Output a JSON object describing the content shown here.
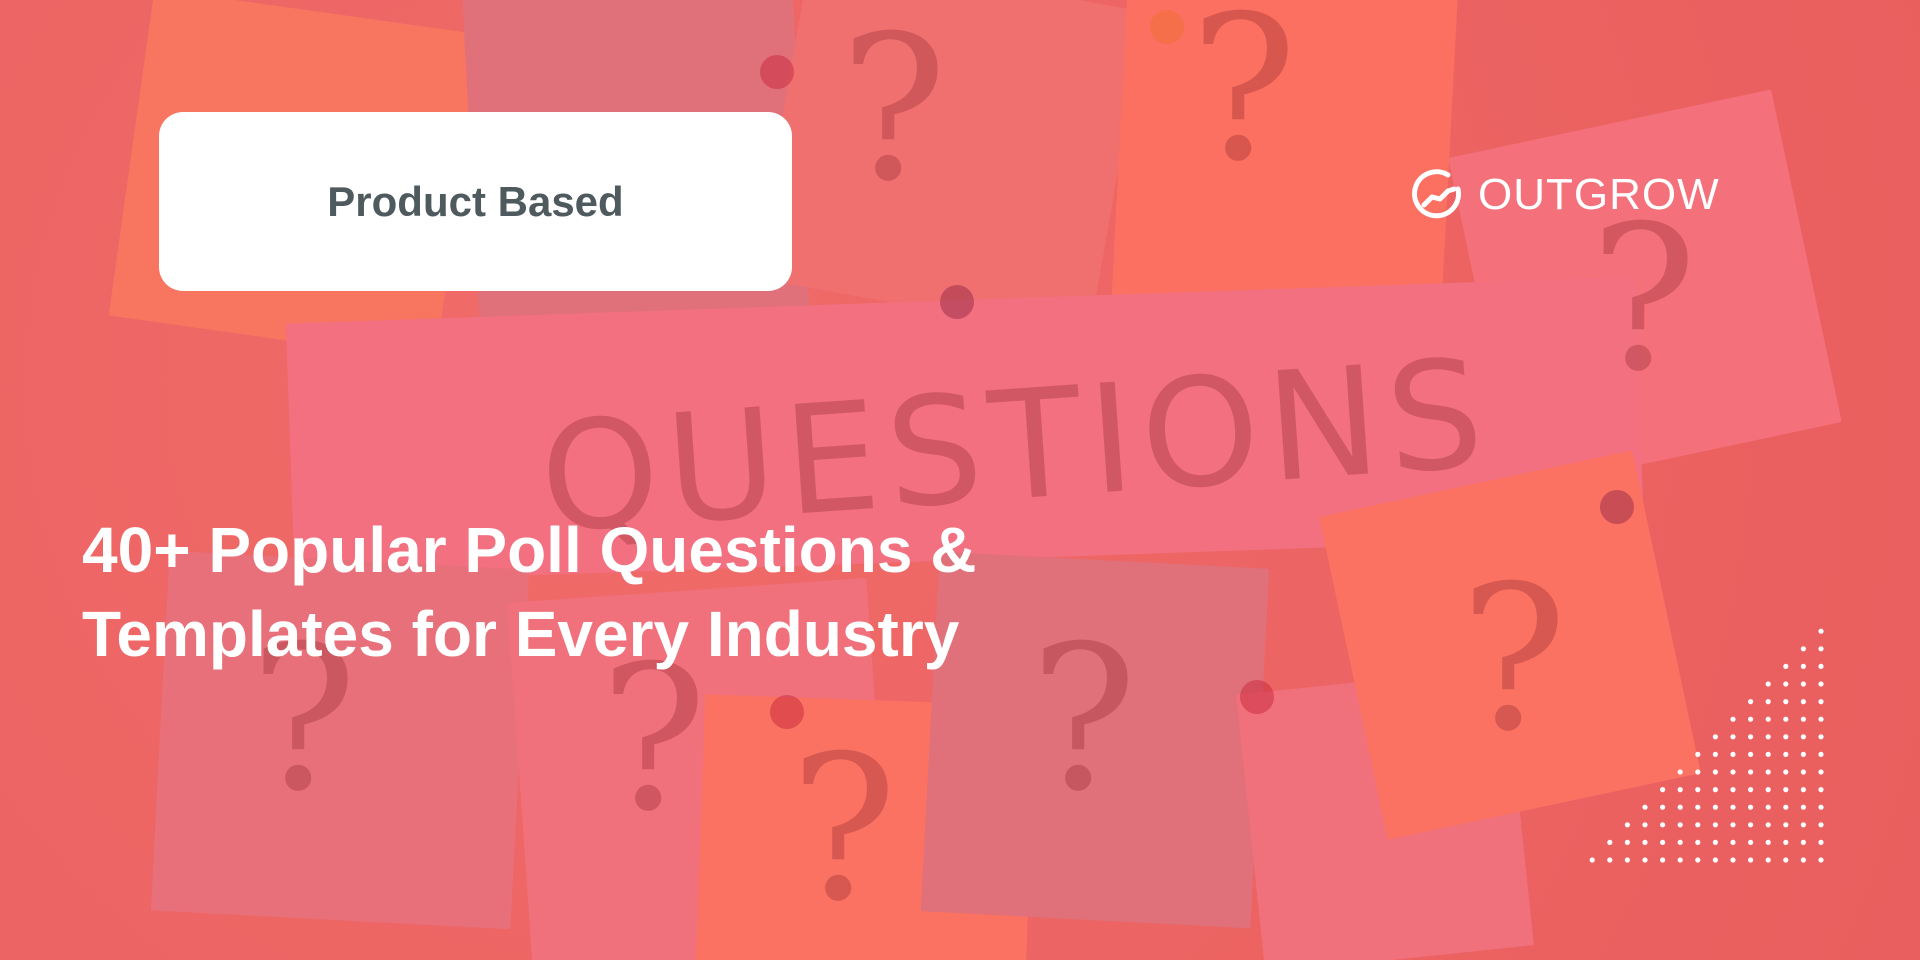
{
  "badge": {
    "label": "Product Based"
  },
  "headline": {
    "line1": "40+ Popular Poll Questions &",
    "line2": "Templates for Every Industry"
  },
  "logo": {
    "text": "OUTGROW",
    "icon": "outgrow-logo-icon"
  },
  "background": {
    "word": "QUESTIONS"
  },
  "colors": {
    "background": "#ee6464",
    "badge_bg": "#ffffff",
    "badge_text": "#4f5a5f",
    "headline": "#ffffff"
  }
}
